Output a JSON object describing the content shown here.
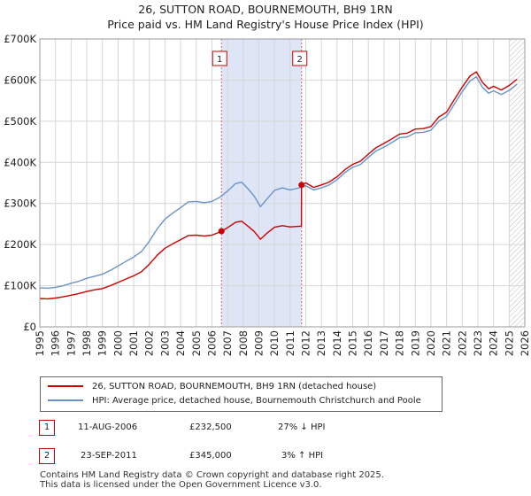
{
  "title_line1": "26, SUTTON ROAD, BOURNEMOUTH, BH9 1RN",
  "title_line2": "Price paid vs. HM Land Registry's House Price Index (HPI)",
  "colors": {
    "property": "#cc0000",
    "hpi": "#6a93c9",
    "shade": "#dde5f7",
    "grid": "#d6d6d6"
  },
  "chart_data": {
    "type": "line",
    "title": "26, SUTTON ROAD, BOURNEMOUTH, BH9 1RN — Price paid vs. HM Land Registry's House Price Index (HPI)",
    "xlabel": "",
    "ylabel": "",
    "xlim": [
      1995,
      2026
    ],
    "ylim": [
      0,
      700000
    ],
    "yticks": [
      0,
      100000,
      200000,
      300000,
      400000,
      500000,
      600000,
      700000
    ],
    "ytick_labels": [
      "£0",
      "£100K",
      "£200K",
      "£300K",
      "£400K",
      "£500K",
      "£600K",
      "£700K"
    ],
    "xticks": [
      1995,
      1996,
      1997,
      1998,
      1999,
      2000,
      2001,
      2002,
      2003,
      2004,
      2005,
      2006,
      2007,
      2008,
      2009,
      2010,
      2011,
      2012,
      2013,
      2014,
      2015,
      2016,
      2017,
      2018,
      2019,
      2020,
      2021,
      2022,
      2023,
      2024,
      2025,
      2026
    ],
    "series": [
      {
        "name": "HPI: Average price, detached house, Bournemouth Christchurch and Poole",
        "x": [
          1995.0,
          1995.5,
          1996.0,
          1996.5,
          1997.0,
          1997.5,
          1998.0,
          1998.5,
          1999.0,
          1999.5,
          2000.0,
          2000.5,
          2001.0,
          2001.5,
          2002.0,
          2002.5,
          2003.0,
          2003.5,
          2004.0,
          2004.5,
          2005.0,
          2005.5,
          2006.0,
          2006.5,
          2007.0,
          2007.5,
          2007.9,
          2008.3,
          2008.7,
          2009.1,
          2009.5,
          2010.0,
          2010.5,
          2011.0,
          2011.5,
          2012.0,
          2012.5,
          2013.0,
          2013.5,
          2014.0,
          2014.5,
          2015.0,
          2015.5,
          2016.0,
          2016.5,
          2017.0,
          2017.5,
          2018.0,
          2018.5,
          2019.0,
          2019.5,
          2020.0,
          2020.5,
          2021.0,
          2021.5,
          2022.0,
          2022.5,
          2022.9,
          2023.3,
          2023.7,
          2024.0,
          2024.5,
          2025.0,
          2025.5
        ],
        "y": [
          95000,
          94000,
          96000,
          100000,
          106000,
          111000,
          118000,
          123000,
          128000,
          137000,
          148000,
          159000,
          170000,
          183000,
          208000,
          238000,
          262000,
          277000,
          290000,
          304000,
          305000,
          302000,
          305000,
          315000,
          330000,
          348000,
          352000,
          336000,
          318000,
          292000,
          310000,
          332000,
          338000,
          333000,
          337000,
          343000,
          333000,
          338000,
          345000,
          358000,
          375000,
          388000,
          395000,
          412000,
          428000,
          437000,
          448000,
          460000,
          462000,
          472000,
          473000,
          478000,
          500000,
          512000,
          542000,
          572000,
          598000,
          608000,
          582000,
          568000,
          574000,
          565000,
          575000,
          590000
        ]
      },
      {
        "name": "26, SUTTON ROAD, BOURNEMOUTH, BH9 1RN (detached house)",
        "x": [
          1995.0,
          1995.5,
          1996.0,
          1996.5,
          1997.0,
          1997.5,
          1998.0,
          1998.5,
          1999.0,
          1999.5,
          2000.0,
          2000.5,
          2001.0,
          2001.5,
          2002.0,
          2002.5,
          2003.0,
          2003.5,
          2004.0,
          2004.5,
          2005.0,
          2005.5,
          2006.0,
          2006.61,
          2007.0,
          2007.5,
          2007.9,
          2008.3,
          2008.7,
          2009.1,
          2009.5,
          2010.0,
          2010.5,
          2011.0,
          2011.72,
          2011.73,
          2012.0,
          2012.5,
          2013.0,
          2013.5,
          2014.0,
          2014.5,
          2015.0,
          2015.5,
          2016.0,
          2016.5,
          2017.0,
          2017.5,
          2018.0,
          2018.5,
          2019.0,
          2019.5,
          2020.0,
          2020.5,
          2021.0,
          2021.5,
          2022.0,
          2022.5,
          2022.9,
          2023.3,
          2023.7,
          2024.0,
          2024.5,
          2025.0,
          2025.5
        ],
        "y": [
          69000,
          68000,
          70000,
          73000,
          77000,
          81000,
          86000,
          90000,
          93000,
          100000,
          108000,
          116000,
          124000,
          134000,
          152000,
          174000,
          191000,
          202000,
          212000,
          222000,
          223000,
          221000,
          223000,
          232500,
          241000,
          254000,
          257000,
          245000,
          232000,
          213000,
          227000,
          242000,
          246000,
          243000,
          245000,
          345000,
          350000,
          339000,
          345000,
          352000,
          365000,
          382000,
          395000,
          403000,
          420000,
          436000,
          446000,
          457000,
          469000,
          471000,
          481000,
          482000,
          487000,
          510000,
          522000,
          553000,
          583000,
          610000,
          620000,
          594000,
          579000,
          585000,
          576000,
          587000,
          602000
        ]
      }
    ],
    "vlines": [
      2006.61,
      2011.73
    ],
    "shaded_range": [
      2006.61,
      2011.73
    ],
    "hatched_from": 2025.0,
    "sales": [
      {
        "label": "1",
        "x": 2006.61,
        "y": 232500
      },
      {
        "label": "2",
        "x": 2011.73,
        "y": 345000
      }
    ]
  },
  "legend": {
    "property_label": "26, SUTTON ROAD, BOURNEMOUTH, BH9 1RN (detached house)",
    "hpi_label": "HPI: Average price, detached house, Bournemouth Christchurch and Poole"
  },
  "annotations": [
    {
      "num": "1",
      "date": "11-AUG-2006",
      "price": "£232,500",
      "hpi": "27% ↓ HPI"
    },
    {
      "num": "2",
      "date": "23-SEP-2011",
      "price": "£345,000",
      "hpi": "3% ↑ HPI"
    }
  ],
  "footer_line1": "Contains HM Land Registry data © Crown copyright and database right 2025.",
  "footer_line2": "This data is licensed under the Open Government Licence v3.0."
}
